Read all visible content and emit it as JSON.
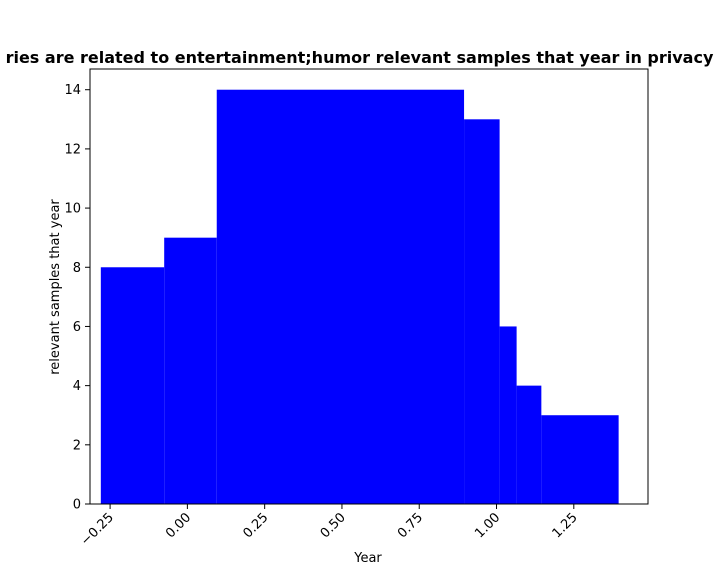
{
  "chart_data": {
    "type": "bar",
    "title": "ries are related to entertainment;humor relevant samples that year in privacy p",
    "xlabel": "Year",
    "ylabel": "relevant samples that year",
    "color": "#0000ff",
    "xlim": [
      -0.315,
      1.49
    ],
    "ylim": [
      0,
      14.7
    ],
    "grid": false,
    "legend": "none",
    "bars": [
      {
        "x0": -0.28,
        "x1": -0.075,
        "value": 8
      },
      {
        "x0": -0.075,
        "x1": 0.095,
        "value": 9
      },
      {
        "x0": 0.095,
        "x1": 0.895,
        "value": 14
      },
      {
        "x0": 0.895,
        "x1": 1.01,
        "value": 13
      },
      {
        "x0": 1.01,
        "x1": 1.065,
        "value": 6
      },
      {
        "x0": 1.065,
        "x1": 1.145,
        "value": 4
      },
      {
        "x0": 1.145,
        "x1": 1.395,
        "value": 3
      }
    ],
    "xticks": [
      {
        "value": -0.25,
        "label": "−0.25"
      },
      {
        "value": 0.0,
        "label": "0.00"
      },
      {
        "value": 0.25,
        "label": "0.25"
      },
      {
        "value": 0.5,
        "label": "0.50"
      },
      {
        "value": 0.75,
        "label": "0.75"
      },
      {
        "value": 1.0,
        "label": "1.00"
      },
      {
        "value": 1.25,
        "label": "1.25"
      }
    ],
    "yticks": [
      {
        "value": 0,
        "label": "0"
      },
      {
        "value": 2,
        "label": "2"
      },
      {
        "value": 4,
        "label": "4"
      },
      {
        "value": 6,
        "label": "6"
      },
      {
        "value": 8,
        "label": "8"
      },
      {
        "value": 10,
        "label": "10"
      },
      {
        "value": 12,
        "label": "12"
      },
      {
        "value": 14,
        "label": "14"
      }
    ]
  }
}
